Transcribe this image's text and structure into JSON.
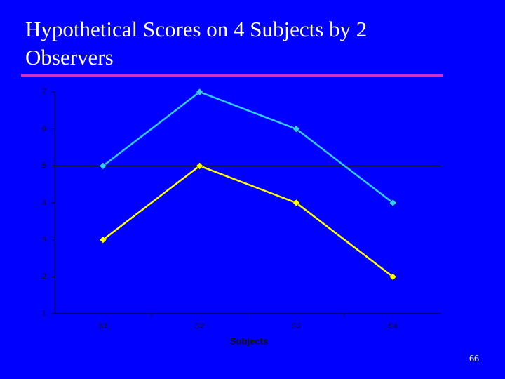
{
  "chart_data": {
    "type": "line",
    "title": "Hypothetical Scores on 4 Subjects by 2 Observers",
    "x_label": "Subjects",
    "categories": [
      "S1",
      "S2",
      "S3",
      "S4"
    ],
    "series": [
      {
        "color": "#33ccff",
        "values": [
          5,
          7,
          6,
          4
        ]
      },
      {
        "color": "#ffff00",
        "values": [
          3,
          5,
          4,
          2
        ]
      }
    ],
    "ylim": [
      1,
      7
    ],
    "yticks": [
      1,
      2,
      3,
      4,
      5,
      6,
      7
    ],
    "x_axis_crosses": 5
  },
  "footer": {
    "page_number": "66"
  }
}
